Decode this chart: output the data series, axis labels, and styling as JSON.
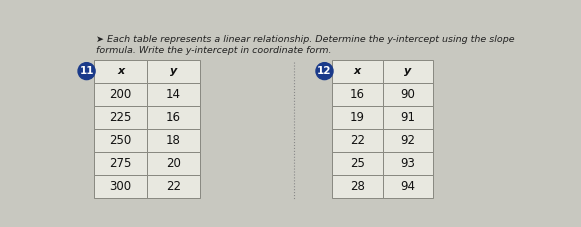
{
  "title_line1": "➤ Each table represents a linear relationship. Determine the y-intercept using the slope",
  "title_line2": "formula. Write the y-intercept in coordinate form.",
  "table1_number": "11",
  "table1_headers": [
    "x",
    "y"
  ],
  "table1_rows": [
    [
      "200",
      "14"
    ],
    [
      "225",
      "16"
    ],
    [
      "250",
      "18"
    ],
    [
      "275",
      "20"
    ],
    [
      "300",
      "22"
    ]
  ],
  "table2_number": "12",
  "table2_headers": [
    "x",
    "y"
  ],
  "table2_rows": [
    [
      "16",
      "90"
    ],
    [
      "19",
      "91"
    ],
    [
      "22",
      "92"
    ],
    [
      "25",
      "93"
    ],
    [
      "28",
      "94"
    ]
  ],
  "bg_color": "#c8c8c0",
  "table_bg": "#e8e8e0",
  "cell_edge": "#888880",
  "circle_color": "#1a3a8a",
  "text_color": "#111111",
  "title_color": "#222222",
  "title_fontsize": 6.8,
  "data_fontsize": 8.5,
  "header_fontsize": 8.0
}
